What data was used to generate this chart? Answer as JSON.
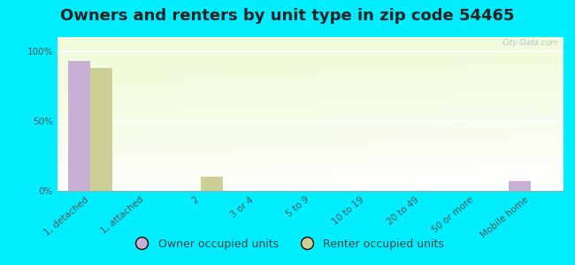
{
  "title": "Owners and renters by unit type in zip code 54465",
  "categories": [
    "1, detached",
    "1, attached",
    "2",
    "3 or 4",
    "5 to 9",
    "10 to 19",
    "20 to 49",
    "50 or more",
    "Mobile home"
  ],
  "owner_values": [
    93,
    0,
    0,
    0,
    0,
    0,
    0,
    0,
    7
  ],
  "renter_values": [
    88,
    0,
    10,
    0,
    0,
    0,
    0,
    0,
    0
  ],
  "owner_color": "#c9aed6",
  "renter_color": "#cccf96",
  "background_color": "#00eeff",
  "plot_bg_color": "#eef5de",
  "yticks": [
    0,
    50,
    100
  ],
  "ylim": [
    0,
    110
  ],
  "bar_width": 0.4,
  "title_fontsize": 13,
  "axis_label_fontsize": 7.5,
  "legend_fontsize": 9,
  "watermark": "City-Data.com"
}
